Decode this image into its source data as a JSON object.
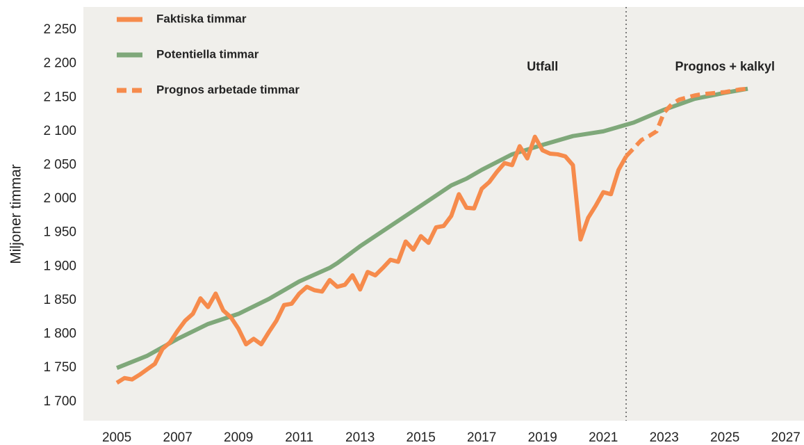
{
  "chart_data": {
    "type": "line",
    "ylabel": "Miljoner timmar",
    "xlim": [
      2003.9,
      2027.6
    ],
    "ylim": [
      1672,
      2284
    ],
    "xticks": [
      2005,
      2007,
      2009,
      2011,
      2013,
      2015,
      2017,
      2019,
      2021,
      2023,
      2025,
      2027
    ],
    "yticks": [
      {
        "value": 1700,
        "label": "1 700"
      },
      {
        "value": 1750,
        "label": "1 750"
      },
      {
        "value": 1800,
        "label": "1 800"
      },
      {
        "value": 1850,
        "label": "1 850"
      },
      {
        "value": 1900,
        "label": "1 900"
      },
      {
        "value": 1950,
        "label": "1 950"
      },
      {
        "value": 2000,
        "label": "2 000"
      },
      {
        "value": 2050,
        "label": "2 050"
      },
      {
        "value": 2100,
        "label": "2 100"
      },
      {
        "value": 2150,
        "label": "2 150"
      },
      {
        "value": 2200,
        "label": "2 200"
      },
      {
        "value": 2250,
        "label": "2 250"
      }
    ],
    "grid": false,
    "legend": "upper left",
    "divider_x": 2021.75,
    "annotations": [
      {
        "text": "Utfall",
        "x": 2019.0,
        "y": 2195
      },
      {
        "text": "Prognos + kalkyl",
        "x": 2025.0,
        "y": 2195
      }
    ],
    "series": [
      {
        "name": "Faktiska timmar",
        "color": "#f68b4c",
        "dash": false,
        "x": [
          2005,
          2005.25,
          2005.5,
          2005.75,
          2006,
          2006.25,
          2006.5,
          2006.75,
          2007,
          2007.25,
          2007.5,
          2007.75,
          2008,
          2008.25,
          2008.5,
          2008.75,
          2009,
          2009.25,
          2009.5,
          2009.75,
          2010,
          2010.25,
          2010.5,
          2010.75,
          2011,
          2011.25,
          2011.5,
          2011.75,
          2012,
          2012.25,
          2012.5,
          2012.75,
          2013,
          2013.25,
          2013.5,
          2013.75,
          2014,
          2014.25,
          2014.5,
          2014.75,
          2015,
          2015.25,
          2015.5,
          2015.75,
          2016,
          2016.25,
          2016.5,
          2016.75,
          2017,
          2017.25,
          2017.5,
          2017.75,
          2018,
          2018.25,
          2018.5,
          2018.75,
          2019,
          2019.25,
          2019.5,
          2019.75,
          2020,
          2020.25,
          2020.5,
          2020.75,
          2021,
          2021.25,
          2021.5,
          2021.75
        ],
        "values": [
          1728,
          1735,
          1733,
          1740,
          1748,
          1756,
          1778,
          1788,
          1805,
          1820,
          1830,
          1853,
          1840,
          1860,
          1835,
          1825,
          1808,
          1785,
          1793,
          1785,
          1803,
          1820,
          1843,
          1845,
          1860,
          1870,
          1865,
          1863,
          1880,
          1870,
          1873,
          1887,
          1866,
          1892,
          1887,
          1898,
          1910,
          1907,
          1937,
          1925,
          1945,
          1935,
          1958,
          1960,
          1975,
          2007,
          1987,
          1986,
          2015,
          2025,
          2040,
          2053,
          2050,
          2078,
          2060,
          2092,
          2072,
          2067,
          2066,
          2063,
          2050,
          1940,
          1972,
          1990,
          2010,
          2007,
          2043,
          2063
        ]
      },
      {
        "name": "Potentiella timmar",
        "color": "#7fa87a",
        "dash": false,
        "x": [
          2005,
          2006,
          2007,
          2008,
          2009,
          2010,
          2011,
          2012,
          2012.25,
          2013,
          2014,
          2015,
          2016,
          2016.5,
          2017,
          2018,
          2019,
          2020,
          2021,
          2022,
          2023,
          2024,
          2025,
          2025.75
        ],
        "values": [
          1750,
          1768,
          1793,
          1815,
          1830,
          1852,
          1878,
          1898,
          1905,
          1930,
          1960,
          1990,
          2020,
          2030,
          2043,
          2066,
          2080,
          2093,
          2100,
          2113,
          2132,
          2148,
          2157,
          2163
        ]
      },
      {
        "name": "Prognos arbetade timmar",
        "color": "#f68b4c",
        "dash": true,
        "x": [
          2021.75,
          2022,
          2022.25,
          2022.5,
          2022.75,
          2023,
          2023.25,
          2023.5,
          2023.75,
          2024,
          2024.25,
          2024.5,
          2024.75,
          2025,
          2025.25,
          2025.5,
          2025.75
        ],
        "values": [
          2063,
          2075,
          2087,
          2093,
          2100,
          2128,
          2140,
          2147,
          2150,
          2153,
          2155,
          2156,
          2157,
          2158,
          2160,
          2162,
          2163
        ]
      }
    ]
  }
}
